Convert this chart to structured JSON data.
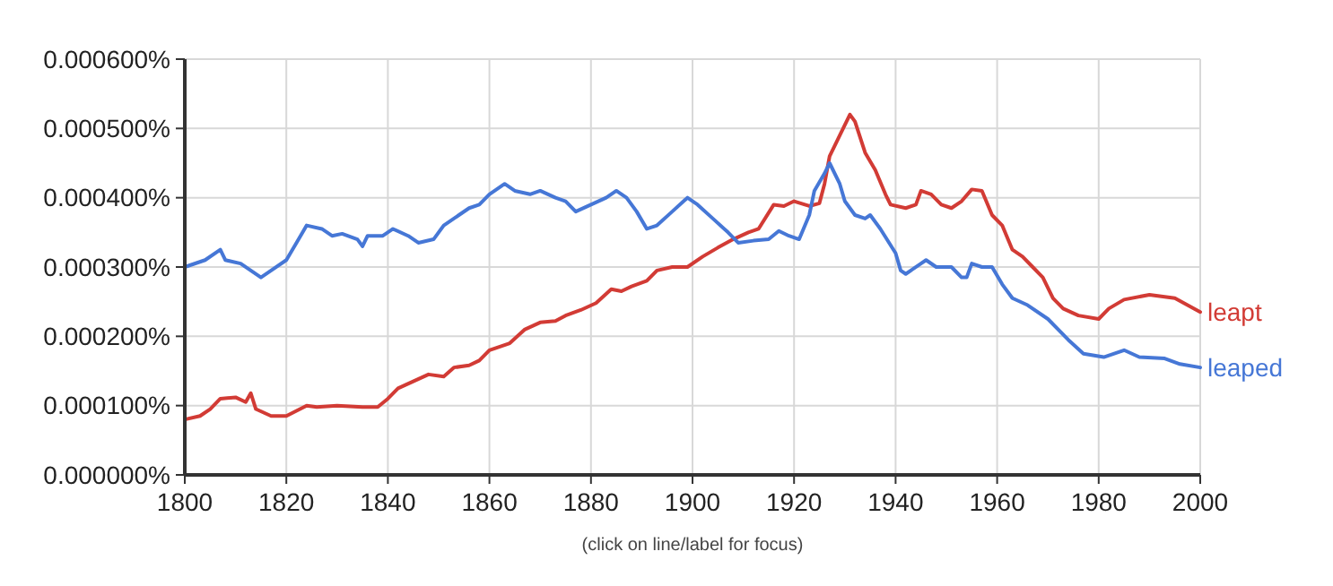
{
  "chart_data": {
    "type": "line",
    "xlim": [
      1800,
      2000
    ],
    "xticks": [
      1800,
      1820,
      1840,
      1860,
      1880,
      1900,
      1920,
      1940,
      1960,
      1980,
      2000
    ],
    "ylim": [
      0,
      0.0006
    ],
    "yticks": [
      {
        "value": 0,
        "label": "0.000000%"
      },
      {
        "value": 0.0001,
        "label": "0.000100%"
      },
      {
        "value": 0.0002,
        "label": "0.000200%"
      },
      {
        "value": 0.0003,
        "label": "0.000300%"
      },
      {
        "value": 0.0004,
        "label": "0.000400%"
      },
      {
        "value": 0.0005,
        "label": "0.000500%"
      },
      {
        "value": 0.0006,
        "label": "0.000600%"
      }
    ],
    "grid": true,
    "legend": false,
    "line_style": "solid",
    "marker": "none",
    "annotations": [
      "(click on line/label for focus)"
    ],
    "series": [
      {
        "name": "leapt",
        "color": "#d23b35",
        "x": [
          1800,
          1803,
          1805,
          1807,
          1810,
          1812,
          1813,
          1814,
          1817,
          1820,
          1824,
          1826,
          1830,
          1835,
          1838,
          1840,
          1842,
          1845,
          1848,
          1851,
          1853,
          1856,
          1858,
          1860,
          1864,
          1867,
          1870,
          1873,
          1875,
          1878,
          1881,
          1884,
          1886,
          1888,
          1891,
          1893,
          1896,
          1899,
          1902,
          1905,
          1908,
          1911,
          1913,
          1916,
          1918,
          1920,
          1923,
          1925,
          1926,
          1927,
          1929,
          1931,
          1932,
          1934,
          1936,
          1938,
          1939,
          1942,
          1944,
          1945,
          1947,
          1949,
          1951,
          1953,
          1955,
          1957,
          1959,
          1961,
          1963,
          1965,
          1967,
          1969,
          1971,
          1973,
          1976,
          1980,
          1982,
          1985,
          1990,
          1995,
          2000
        ],
        "values": [
          8e-05,
          8.5e-05,
          9.5e-05,
          0.00011,
          0.000112,
          0.000105,
          0.000118,
          9.5e-05,
          8.5e-05,
          8.5e-05,
          0.0001,
          9.8e-05,
          0.0001,
          9.8e-05,
          9.8e-05,
          0.00011,
          0.000125,
          0.000135,
          0.000145,
          0.000142,
          0.000155,
          0.000158,
          0.000165,
          0.00018,
          0.00019,
          0.00021,
          0.00022,
          0.000222,
          0.00023,
          0.000238,
          0.000248,
          0.000268,
          0.000265,
          0.000272,
          0.00028,
          0.000295,
          0.0003,
          0.0003,
          0.000315,
          0.000328,
          0.00034,
          0.00035,
          0.000355,
          0.00039,
          0.000388,
          0.000395,
          0.000388,
          0.000392,
          0.00042,
          0.00046,
          0.00049,
          0.00052,
          0.00051,
          0.000465,
          0.00044,
          0.000405,
          0.00039,
          0.000385,
          0.00039,
          0.00041,
          0.000405,
          0.00039,
          0.000385,
          0.000395,
          0.000412,
          0.00041,
          0.000375,
          0.00036,
          0.000325,
          0.000315,
          0.0003,
          0.000285,
          0.000255,
          0.00024,
          0.00023,
          0.000225,
          0.00024,
          0.000253,
          0.00026,
          0.000255,
          0.000235
        ]
      },
      {
        "name": "leaped",
        "color": "#4677d6",
        "x": [
          1800,
          1804,
          1807,
          1808,
          1811,
          1813,
          1815,
          1817,
          1820,
          1822,
          1824,
          1827,
          1829,
          1831,
          1834,
          1835,
          1836,
          1839,
          1841,
          1844,
          1846,
          1849,
          1851,
          1854,
          1856,
          1858,
          1860,
          1863,
          1865,
          1868,
          1870,
          1873,
          1875,
          1877,
          1880,
          1883,
          1885,
          1887,
          1889,
          1891,
          1893,
          1896,
          1899,
          1901,
          1904,
          1907,
          1909,
          1912,
          1915,
          1917,
          1919,
          1921,
          1923,
          1924,
          1926,
          1927,
          1929,
          1930,
          1932,
          1934,
          1935,
          1937,
          1940,
          1941,
          1942,
          1945,
          1946,
          1948,
          1951,
          1953,
          1954,
          1955,
          1957,
          1959,
          1961,
          1963,
          1966,
          1970,
          1974,
          1977,
          1981,
          1985,
          1988,
          1993,
          1996,
          2000
        ],
        "values": [
          0.0003,
          0.00031,
          0.000325,
          0.00031,
          0.000305,
          0.000295,
          0.000285,
          0.000295,
          0.00031,
          0.000335,
          0.00036,
          0.000355,
          0.000345,
          0.000348,
          0.00034,
          0.00033,
          0.000345,
          0.000345,
          0.000355,
          0.000345,
          0.000335,
          0.00034,
          0.00036,
          0.000375,
          0.000385,
          0.00039,
          0.000405,
          0.00042,
          0.00041,
          0.000405,
          0.00041,
          0.0004,
          0.000395,
          0.00038,
          0.00039,
          0.0004,
          0.00041,
          0.0004,
          0.00038,
          0.000355,
          0.00036,
          0.00038,
          0.0004,
          0.00039,
          0.00037,
          0.00035,
          0.000335,
          0.000338,
          0.00034,
          0.000352,
          0.000345,
          0.00034,
          0.000375,
          0.00041,
          0.000435,
          0.00045,
          0.00042,
          0.000395,
          0.000375,
          0.00037,
          0.000375,
          0.000355,
          0.00032,
          0.000295,
          0.00029,
          0.000305,
          0.00031,
          0.0003,
          0.0003,
          0.000285,
          0.000285,
          0.000305,
          0.0003,
          0.0003,
          0.000275,
          0.000255,
          0.000245,
          0.000225,
          0.000195,
          0.000175,
          0.00017,
          0.00018,
          0.00017,
          0.000168,
          0.00016,
          0.000155
        ]
      }
    ]
  }
}
